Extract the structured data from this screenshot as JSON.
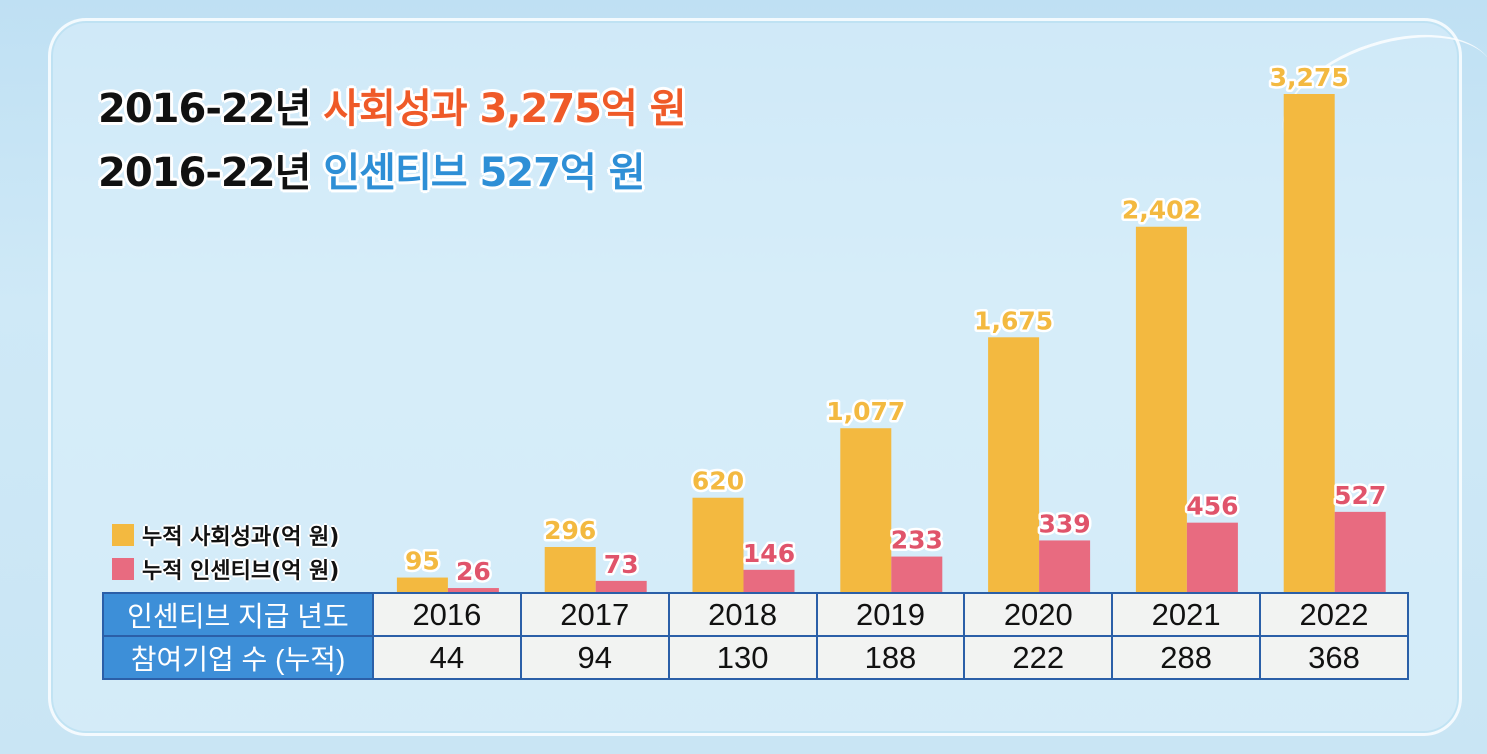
{
  "headline": {
    "line1": {
      "prefix": "2016-22년",
      "highlight": "사회성과 3,275억 원"
    },
    "line2": {
      "prefix": "2016-22년",
      "highlight": "인센티브 527억 원"
    }
  },
  "colors": {
    "social_bar": "#f3b940",
    "incentive_bar": "#e86b80",
    "incentive_label": "#e0546b",
    "social_label": "#f3b940",
    "table_header": "#3d8fd8"
  },
  "chart_data": {
    "type": "bar",
    "categories": [
      "2016",
      "2017",
      "2018",
      "2019",
      "2020",
      "2021",
      "2022"
    ],
    "series": [
      {
        "name": "누적 사회성과(억 원)",
        "values": [
          95,
          296,
          620,
          1077,
          1675,
          2402,
          3275
        ],
        "labels": [
          "95",
          "296",
          "620",
          "1,077",
          "1,675",
          "2,402",
          "3,275"
        ]
      },
      {
        "name": "누적 인센티브(억 원)",
        "values": [
          26,
          73,
          146,
          233,
          339,
          456,
          527
        ],
        "labels": [
          "26",
          "73",
          "146",
          "233",
          "339",
          "456",
          "527"
        ]
      }
    ],
    "ylim": [
      0,
      3275
    ]
  },
  "legend": {
    "social": "누적 사회성과(억 원)",
    "incentive": "누적 인센티브(억 원)"
  },
  "table": {
    "row1_header": "인센티브 지급 년도",
    "row2_header": "참여기업 수 (누적)",
    "years": [
      "2016",
      "2017",
      "2018",
      "2019",
      "2020",
      "2021",
      "2022"
    ],
    "companies": [
      "44",
      "94",
      "130",
      "188",
      "222",
      "288",
      "368"
    ]
  }
}
